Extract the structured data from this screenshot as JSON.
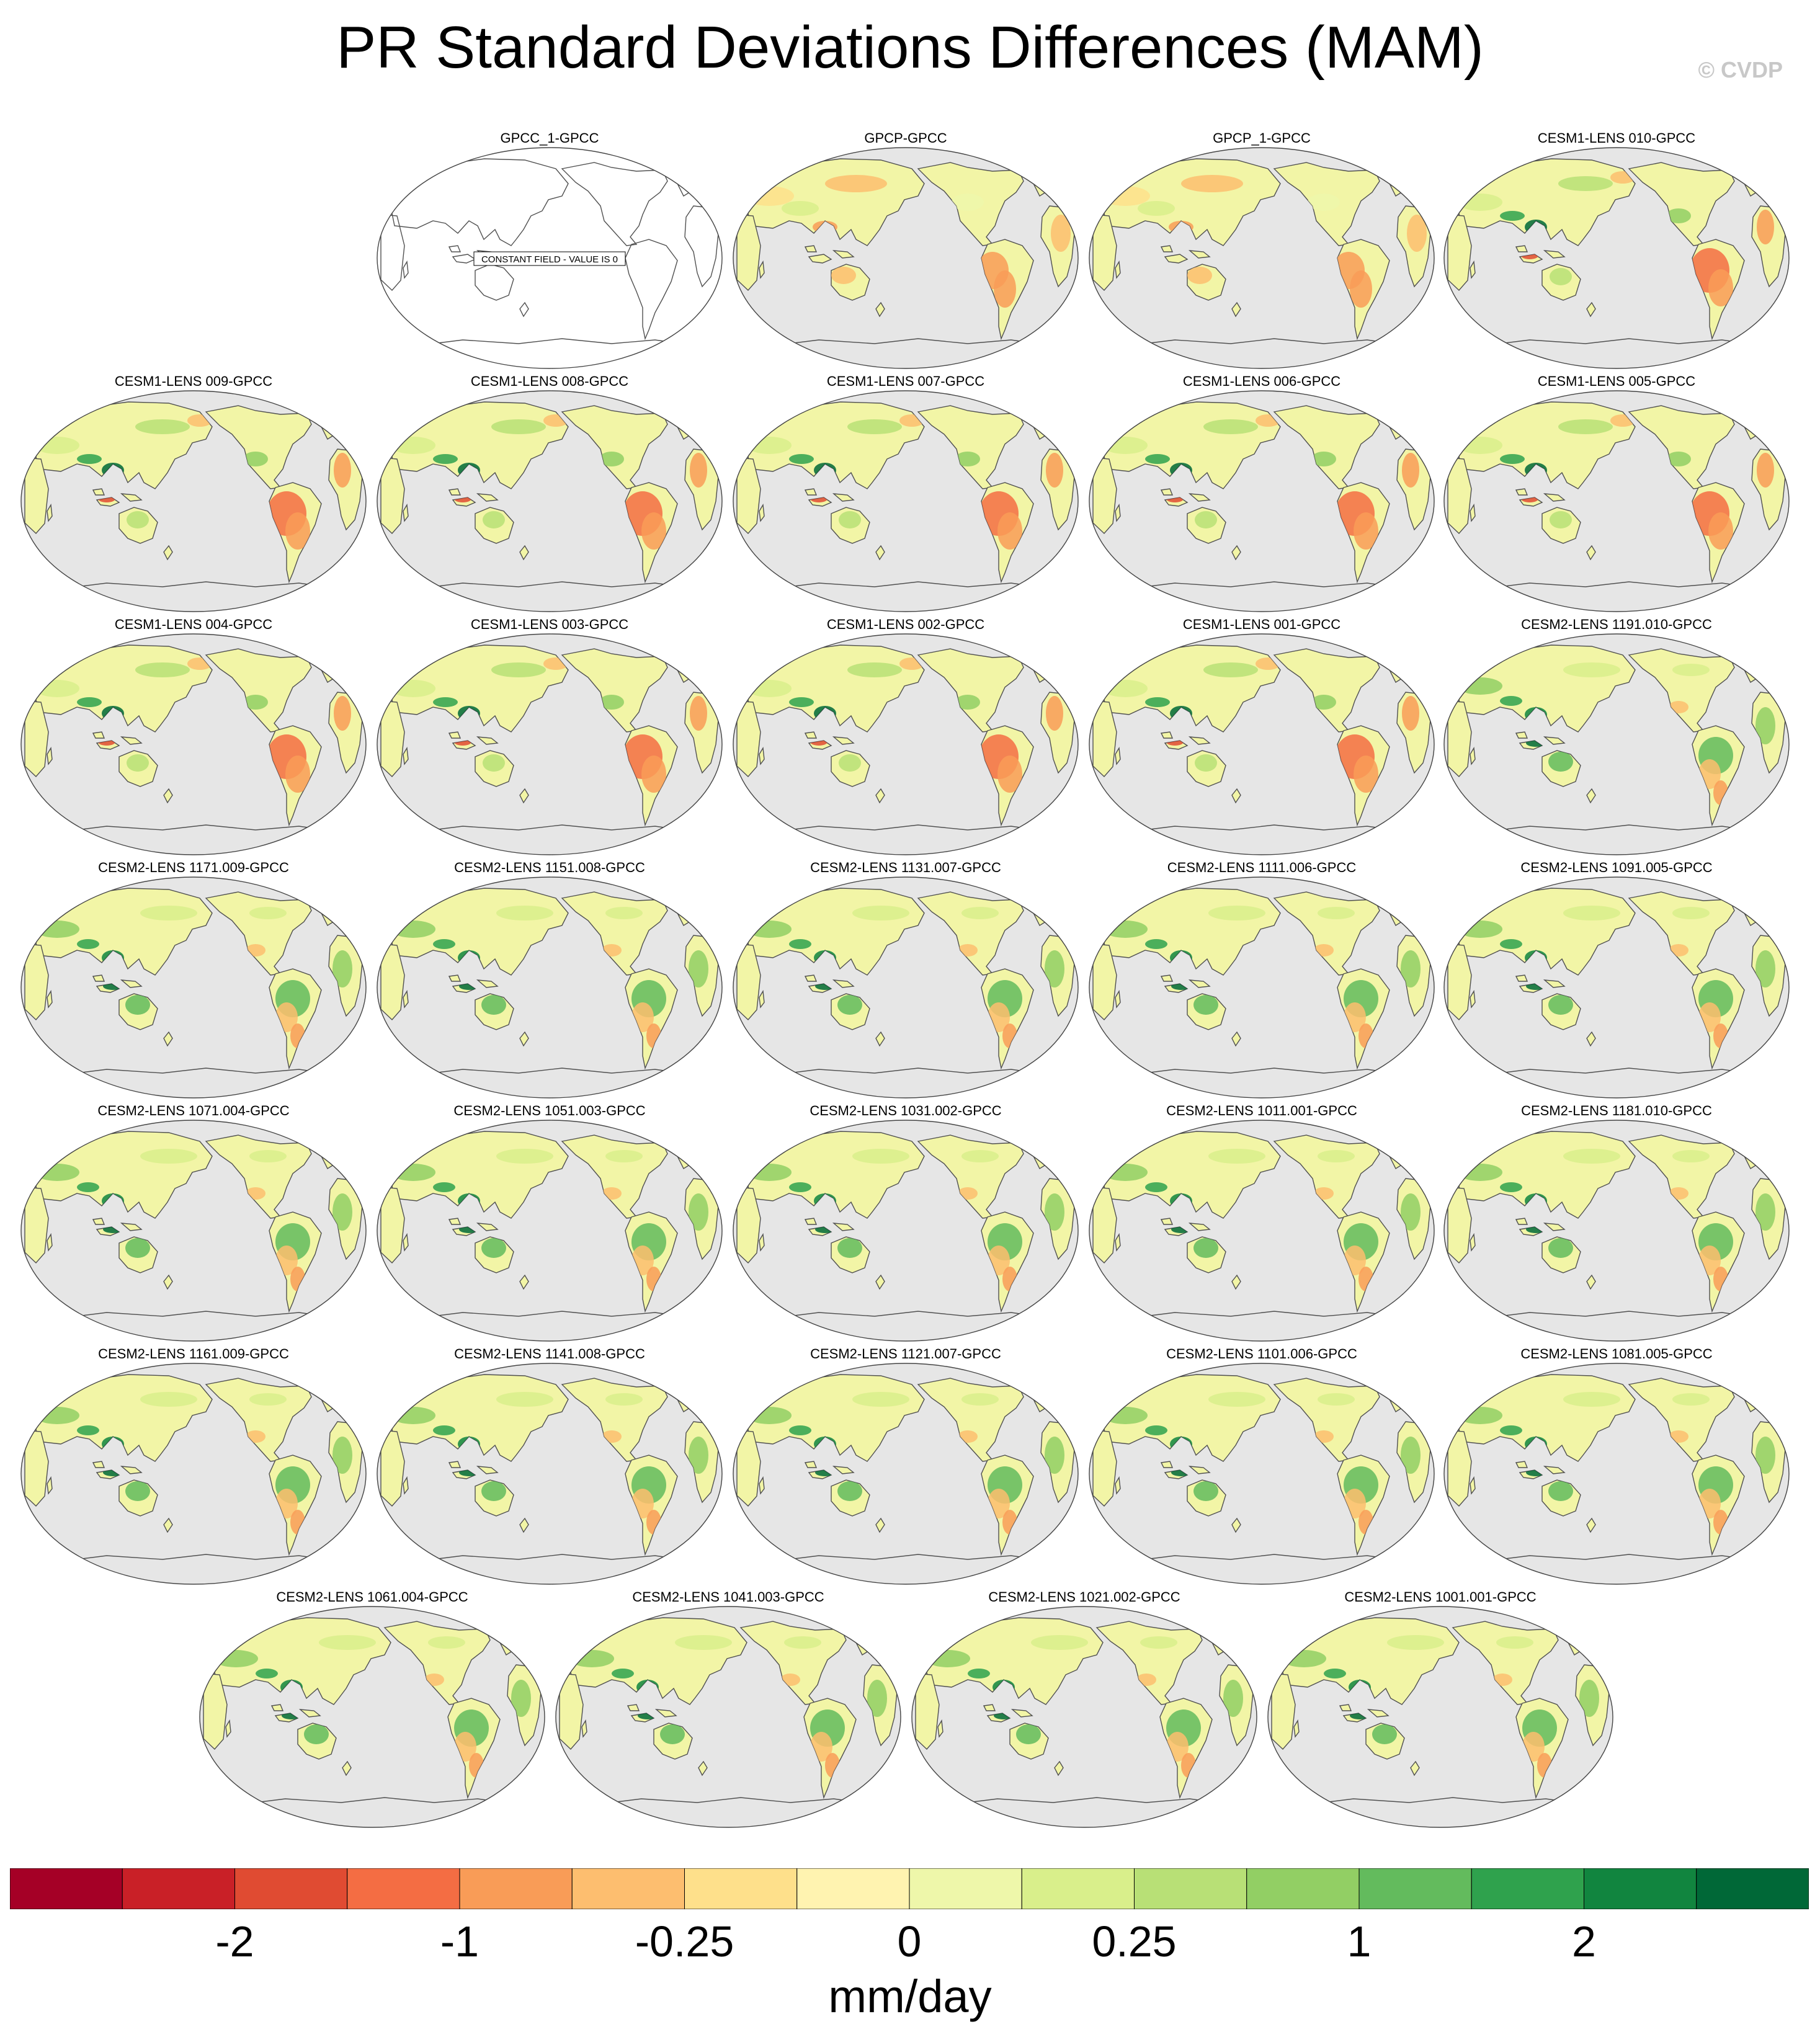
{
  "title": "PR Standard Deviations Differences (MAM)",
  "watermark": "© CVDP",
  "constant_field_note": "CONSTANT FIELD - VALUE IS 0",
  "map_colors": {
    "ocean": "#e6e6e6",
    "land_base": "#f2f5a6",
    "coast": "#505050"
  },
  "panels": [
    {
      "title": "GPCC_1-GPCC",
      "style": "constant"
    },
    {
      "title": "GPCP-GPCC",
      "style": "obs"
    },
    {
      "title": "GPCP_1-GPCC",
      "style": "obs"
    },
    {
      "title": "CESM1-LENS 010-GPCC",
      "style": "cesm1"
    },
    {
      "title": "CESM1-LENS 009-GPCC",
      "style": "cesm1"
    },
    {
      "title": "CESM1-LENS 008-GPCC",
      "style": "cesm1"
    },
    {
      "title": "CESM1-LENS 007-GPCC",
      "style": "cesm1"
    },
    {
      "title": "CESM1-LENS 006-GPCC",
      "style": "cesm1"
    },
    {
      "title": "CESM1-LENS 005-GPCC",
      "style": "cesm1"
    },
    {
      "title": "CESM1-LENS 004-GPCC",
      "style": "cesm1"
    },
    {
      "title": "CESM1-LENS 003-GPCC",
      "style": "cesm1"
    },
    {
      "title": "CESM1-LENS 002-GPCC",
      "style": "cesm1"
    },
    {
      "title": "CESM1-LENS 001-GPCC",
      "style": "cesm1"
    },
    {
      "title": "CESM2-LENS 1191.010-GPCC",
      "style": "cesm2"
    },
    {
      "title": "CESM2-LENS 1171.009-GPCC",
      "style": "cesm2"
    },
    {
      "title": "CESM2-LENS 1151.008-GPCC",
      "style": "cesm2"
    },
    {
      "title": "CESM2-LENS 1131.007-GPCC",
      "style": "cesm2"
    },
    {
      "title": "CESM2-LENS 1111.006-GPCC",
      "style": "cesm2"
    },
    {
      "title": "CESM2-LENS 1091.005-GPCC",
      "style": "cesm2"
    },
    {
      "title": "CESM2-LENS 1071.004-GPCC",
      "style": "cesm2"
    },
    {
      "title": "CESM2-LENS 1051.003-GPCC",
      "style": "cesm2"
    },
    {
      "title": "CESM2-LENS 1031.002-GPCC",
      "style": "cesm2"
    },
    {
      "title": "CESM2-LENS 1011.001-GPCC",
      "style": "cesm2"
    },
    {
      "title": "CESM2-LENS 1181.010-GPCC",
      "style": "cesm2"
    },
    {
      "title": "CESM2-LENS 1161.009-GPCC",
      "style": "cesm2"
    },
    {
      "title": "CESM2-LENS 1141.008-GPCC",
      "style": "cesm2"
    },
    {
      "title": "CESM2-LENS 1121.007-GPCC",
      "style": "cesm2"
    },
    {
      "title": "CESM2-LENS 1101.006-GPCC",
      "style": "cesm2"
    },
    {
      "title": "CESM2-LENS 1081.005-GPCC",
      "style": "cesm2"
    },
    {
      "title": "CESM2-LENS 1061.004-GPCC",
      "style": "cesm2"
    },
    {
      "title": "CESM2-LENS 1041.003-GPCC",
      "style": "cesm2"
    },
    {
      "title": "CESM2-LENS 1021.002-GPCC",
      "style": "cesm2"
    },
    {
      "title": "CESM2-LENS 1001.001-GPCC",
      "style": "cesm2"
    }
  ],
  "colorbar": {
    "colors": [
      "#a50026",
      "#c92027",
      "#e04b32",
      "#f46d43",
      "#f99c57",
      "#fdbe6f",
      "#fee08b",
      "#fff3b0",
      "#eef7aa",
      "#d9ef8b",
      "#b8e076",
      "#92cf64",
      "#63bb5d",
      "#2fa24d",
      "#11853f",
      "#006837"
    ],
    "labels": [
      {
        "text": "-2",
        "boundary": 2
      },
      {
        "text": "-1",
        "boundary": 4
      },
      {
        "text": "-0.25",
        "boundary": 6
      },
      {
        "text": "0",
        "boundary": 8
      },
      {
        "text": "0.25",
        "boundary": 10
      },
      {
        "text": "1",
        "boundary": 12
      },
      {
        "text": "2",
        "boundary": 14
      }
    ],
    "units": "mm/day"
  }
}
